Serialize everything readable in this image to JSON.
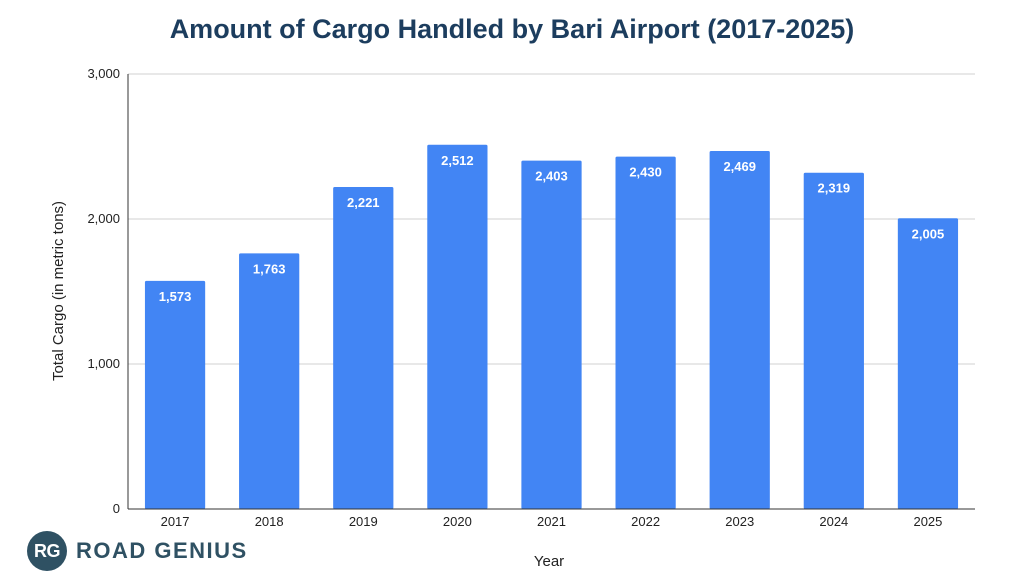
{
  "chart_data": {
    "type": "bar",
    "title": "Amount of Cargo Handled by Bari Airport (2017-2025)",
    "xlabel": "Year",
    "ylabel": "Total Cargo (in metric tons)",
    "categories": [
      "2017",
      "2018",
      "2019",
      "2020",
      "2021",
      "2022",
      "2023",
      "2024",
      "2025"
    ],
    "values": [
      1573,
      1763,
      2221,
      2512,
      2403,
      2430,
      2469,
      2319,
      2005
    ],
    "value_labels": [
      "1,573",
      "1,763",
      "2,221",
      "2,512",
      "2,403",
      "2,430",
      "2,469",
      "2,319",
      "2,005"
    ],
    "ylim": [
      0,
      3000
    ],
    "yticks": [
      0,
      1000,
      2000,
      3000
    ],
    "ytick_labels": [
      "0",
      "1,000",
      "2,000",
      "3,000"
    ],
    "grid": true,
    "bar_color": "#4285f4"
  },
  "branding": {
    "badge": "RG",
    "name": "ROAD GENIUS"
  }
}
